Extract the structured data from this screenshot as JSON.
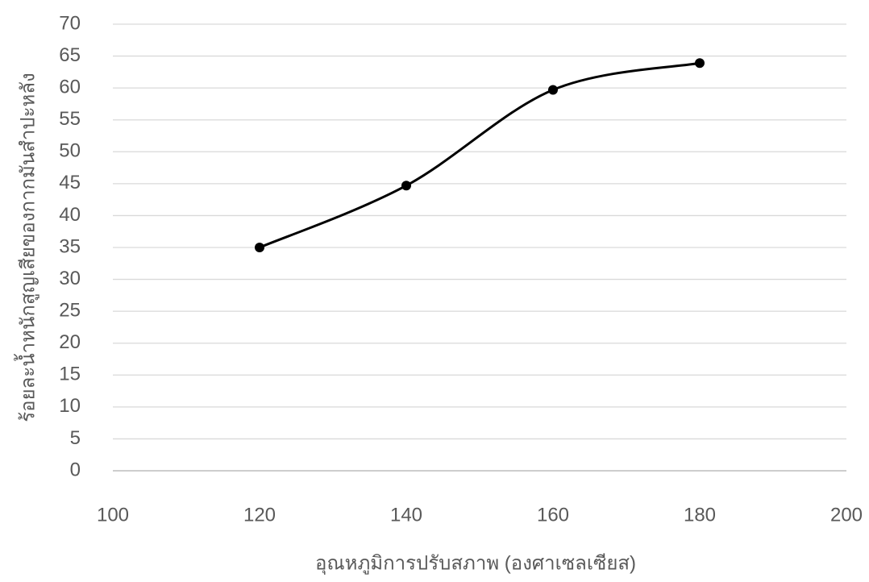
{
  "chart_data": {
    "type": "line",
    "x_label": "อุณหภูมิการปรับสภาพ (องศาเซลเซียส)",
    "y_label": "ร้อยละน้ำหนักสูญเสียของกากมันสำปะหลัง",
    "x": [
      120,
      140,
      160,
      180
    ],
    "series": [
      {
        "color": "#000000",
        "values": [
          35,
          44.7,
          59.7,
          63.9
        ]
      }
    ],
    "xlim": [
      100,
      200
    ],
    "xticks": [
      100,
      120,
      140,
      160,
      180,
      200
    ],
    "ylim": [
      0,
      70
    ],
    "yticks": [
      0,
      5,
      10,
      15,
      20,
      25,
      30,
      35,
      40,
      45,
      50,
      55,
      60,
      65,
      70
    ],
    "grid": true,
    "smooth": true
  }
}
